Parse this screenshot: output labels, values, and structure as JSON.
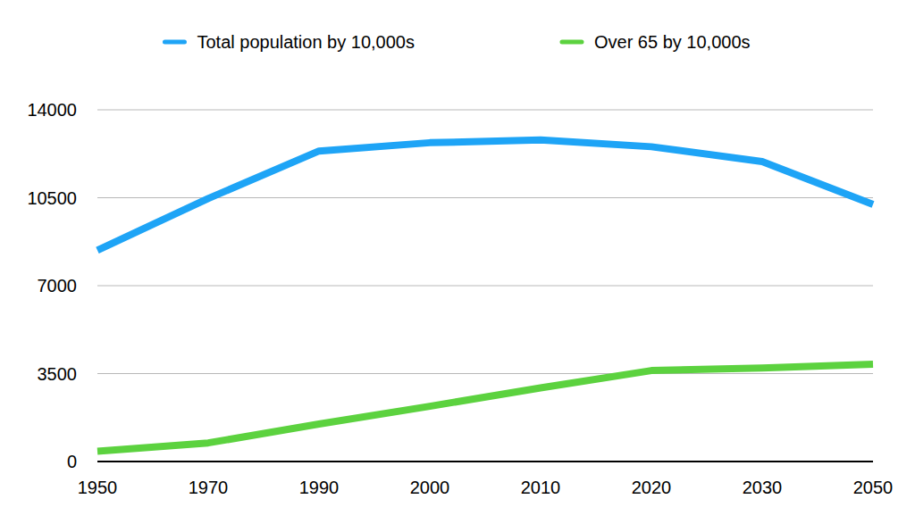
{
  "chart_data": {
    "type": "line",
    "categories": [
      "1950",
      "1970",
      "1990",
      "2000",
      "2010",
      "2020",
      "2030",
      "2050"
    ],
    "series": [
      {
        "name": "Total population by 10,000s",
        "color": "#1ea4f6",
        "values": [
          8410,
          10470,
          12360,
          12690,
          12800,
          12530,
          11940,
          10230
        ]
      },
      {
        "name": "Over 65 by 10,000s",
        "color": "#5cd23f",
        "values": [
          410,
          740,
          1490,
          2200,
          2930,
          3620,
          3720,
          3870
        ]
      }
    ],
    "ylim": [
      0,
      14000
    ],
    "yticks": [
      0,
      3500,
      7000,
      10500,
      14000
    ],
    "grid": true,
    "legend": "top"
  }
}
